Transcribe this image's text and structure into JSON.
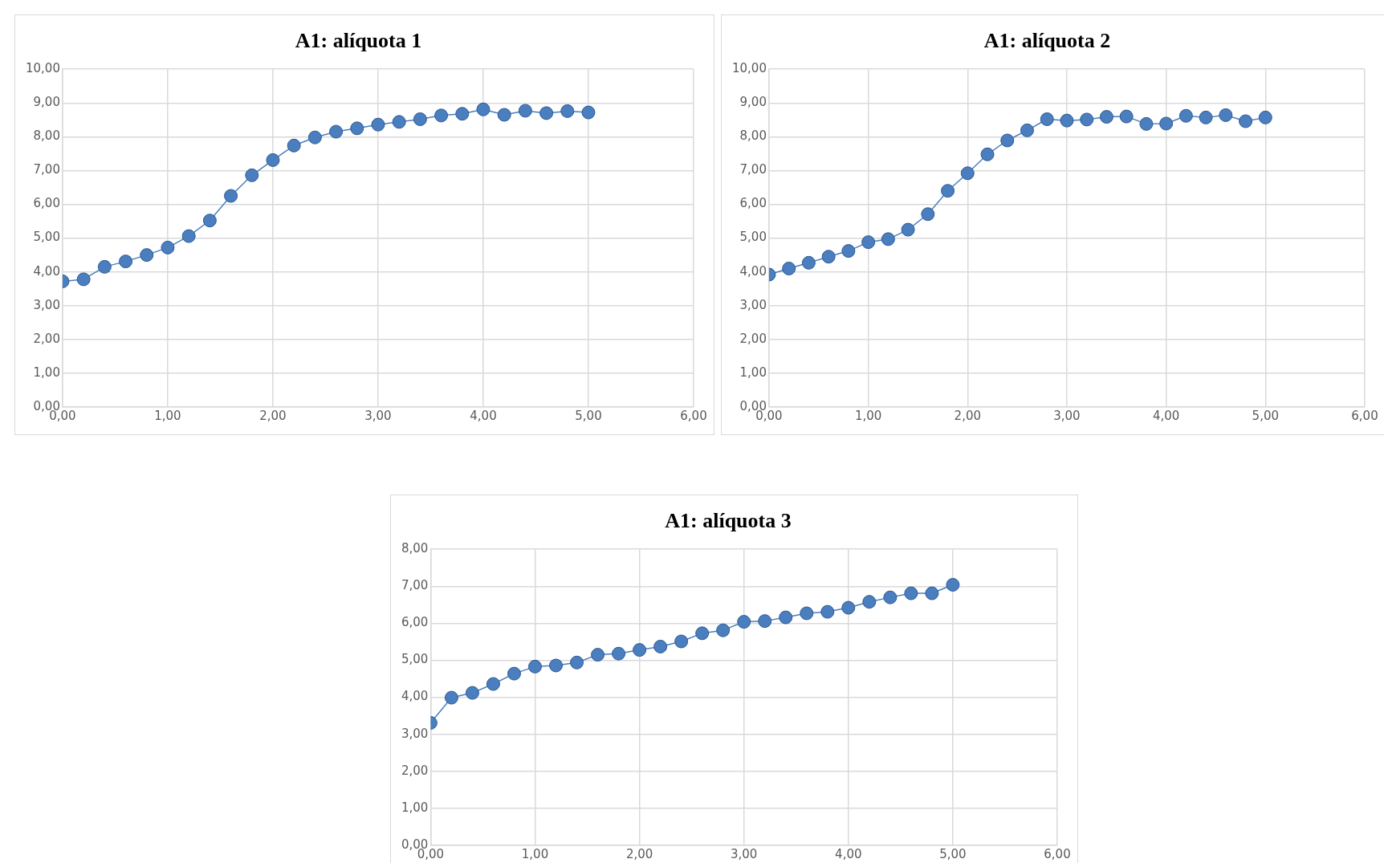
{
  "chart_data": [
    {
      "type": "line",
      "title": "A1: alíquota 1",
      "x": [
        0,
        0.2,
        0.4,
        0.6,
        0.8,
        1,
        1.2,
        1.4,
        1.6,
        1.8,
        2,
        2.2,
        2.4,
        2.6,
        2.8,
        3,
        3.2,
        3.4,
        3.6,
        3.8,
        4,
        4.2,
        4.4,
        4.6,
        4.8,
        5
      ],
      "series": [
        {
          "color": "#4a7ebf",
          "values": [
            3.72,
            3.78,
            4.15,
            4.31,
            4.5,
            4.72,
            5.06,
            5.52,
            6.25,
            6.86,
            7.31,
            7.74,
            7.98,
            8.15,
            8.25,
            8.36,
            8.44,
            8.52,
            8.63,
            8.68,
            8.81,
            8.65,
            8.77,
            8.7,
            8.76,
            8.72
          ]
        }
      ],
      "xlim": [
        0,
        6
      ],
      "xticks": [
        {
          "value": 0,
          "label": "0,00"
        },
        {
          "value": 1,
          "label": "1,00"
        },
        {
          "value": 2,
          "label": "2,00"
        },
        {
          "value": 3,
          "label": "3,00"
        },
        {
          "value": 4,
          "label": "4,00"
        },
        {
          "value": 5,
          "label": "5,00"
        },
        {
          "value": 6,
          "label": "6,00"
        }
      ],
      "ylim": [
        0,
        10
      ],
      "yticks": [
        {
          "value": 0,
          "label": "0,00"
        },
        {
          "value": 1,
          "label": "1,00"
        },
        {
          "value": 2,
          "label": "2,00"
        },
        {
          "value": 3,
          "label": "3,00"
        },
        {
          "value": 4,
          "label": "4,00"
        },
        {
          "value": 5,
          "label": "5,00"
        },
        {
          "value": 6,
          "label": "6,00"
        },
        {
          "value": 7,
          "label": "7,00"
        },
        {
          "value": 8,
          "label": "8,00"
        },
        {
          "value": 9,
          "label": "9,00"
        },
        {
          "value": 10,
          "label": "10,00"
        }
      ],
      "grid": true,
      "legend": false,
      "marker": "circle",
      "line_style": "solid"
    },
    {
      "type": "line",
      "title": "A1: alíquota 2",
      "x": [
        0,
        0.2,
        0.4,
        0.6,
        0.8,
        1,
        1.2,
        1.4,
        1.6,
        1.8,
        2,
        2.2,
        2.4,
        2.6,
        2.8,
        3,
        3.2,
        3.4,
        3.6,
        3.8,
        4,
        4.2,
        4.4,
        4.6,
        4.8,
        5
      ],
      "series": [
        {
          "color": "#4a7ebf",
          "values": [
            3.92,
            4.1,
            4.27,
            4.45,
            4.62,
            4.88,
            4.97,
            5.25,
            5.71,
            6.4,
            6.92,
            7.48,
            7.89,
            8.19,
            8.52,
            8.48,
            8.51,
            8.59,
            8.6,
            8.38,
            8.39,
            8.62,
            8.57,
            8.64,
            8.46,
            8.57
          ]
        }
      ],
      "xlim": [
        0,
        6
      ],
      "xticks": [
        {
          "value": 0,
          "label": "0,00"
        },
        {
          "value": 1,
          "label": "1,00"
        },
        {
          "value": 2,
          "label": "2,00"
        },
        {
          "value": 3,
          "label": "3,00"
        },
        {
          "value": 4,
          "label": "4,00"
        },
        {
          "value": 5,
          "label": "5,00"
        },
        {
          "value": 6,
          "label": "6,00"
        }
      ],
      "ylim": [
        0,
        10
      ],
      "yticks": [
        {
          "value": 0,
          "label": "0,00"
        },
        {
          "value": 1,
          "label": "1,00"
        },
        {
          "value": 2,
          "label": "2,00"
        },
        {
          "value": 3,
          "label": "3,00"
        },
        {
          "value": 4,
          "label": "4,00"
        },
        {
          "value": 5,
          "label": "5,00"
        },
        {
          "value": 6,
          "label": "6,00"
        },
        {
          "value": 7,
          "label": "7,00"
        },
        {
          "value": 8,
          "label": "8,00"
        },
        {
          "value": 9,
          "label": "9,00"
        },
        {
          "value": 10,
          "label": "10,00"
        }
      ],
      "grid": true,
      "legend": false,
      "marker": "circle",
      "line_style": "solid"
    },
    {
      "type": "line",
      "title": "A1: alíquota 3",
      "x": [
        0,
        0.2,
        0.4,
        0.6,
        0.8,
        1,
        1.2,
        1.4,
        1.6,
        1.8,
        2,
        2.2,
        2.4,
        2.6,
        2.8,
        3,
        3.2,
        3.4,
        3.6,
        3.8,
        4,
        4.2,
        4.4,
        4.6,
        4.8,
        5
      ],
      "series": [
        {
          "color": "#4a7ebf",
          "values": [
            3.31,
            3.99,
            4.12,
            4.36,
            4.64,
            4.83,
            4.86,
            4.94,
            5.15,
            5.18,
            5.28,
            5.37,
            5.51,
            5.73,
            5.81,
            6.04,
            6.06,
            6.16,
            6.27,
            6.31,
            6.42,
            6.58,
            6.7,
            6.81,
            6.81,
            7.04
          ]
        }
      ],
      "xlim": [
        0,
        6
      ],
      "xticks": [
        {
          "value": 0,
          "label": "0,00"
        },
        {
          "value": 1,
          "label": "1,00"
        },
        {
          "value": 2,
          "label": "2,00"
        },
        {
          "value": 3,
          "label": "3,00"
        },
        {
          "value": 4,
          "label": "4,00"
        },
        {
          "value": 5,
          "label": "5,00"
        },
        {
          "value": 6,
          "label": "6,00"
        }
      ],
      "ylim": [
        0,
        8
      ],
      "yticks": [
        {
          "value": 0,
          "label": "0,00"
        },
        {
          "value": 1,
          "label": "1,00"
        },
        {
          "value": 2,
          "label": "2,00"
        },
        {
          "value": 3,
          "label": "3,00"
        },
        {
          "value": 4,
          "label": "4,00"
        },
        {
          "value": 5,
          "label": "5,00"
        },
        {
          "value": 6,
          "label": "6,00"
        },
        {
          "value": 7,
          "label": "7,00"
        },
        {
          "value": 8,
          "label": "8,00"
        }
      ],
      "grid": true,
      "legend": false,
      "marker": "circle",
      "line_style": "solid"
    }
  ]
}
